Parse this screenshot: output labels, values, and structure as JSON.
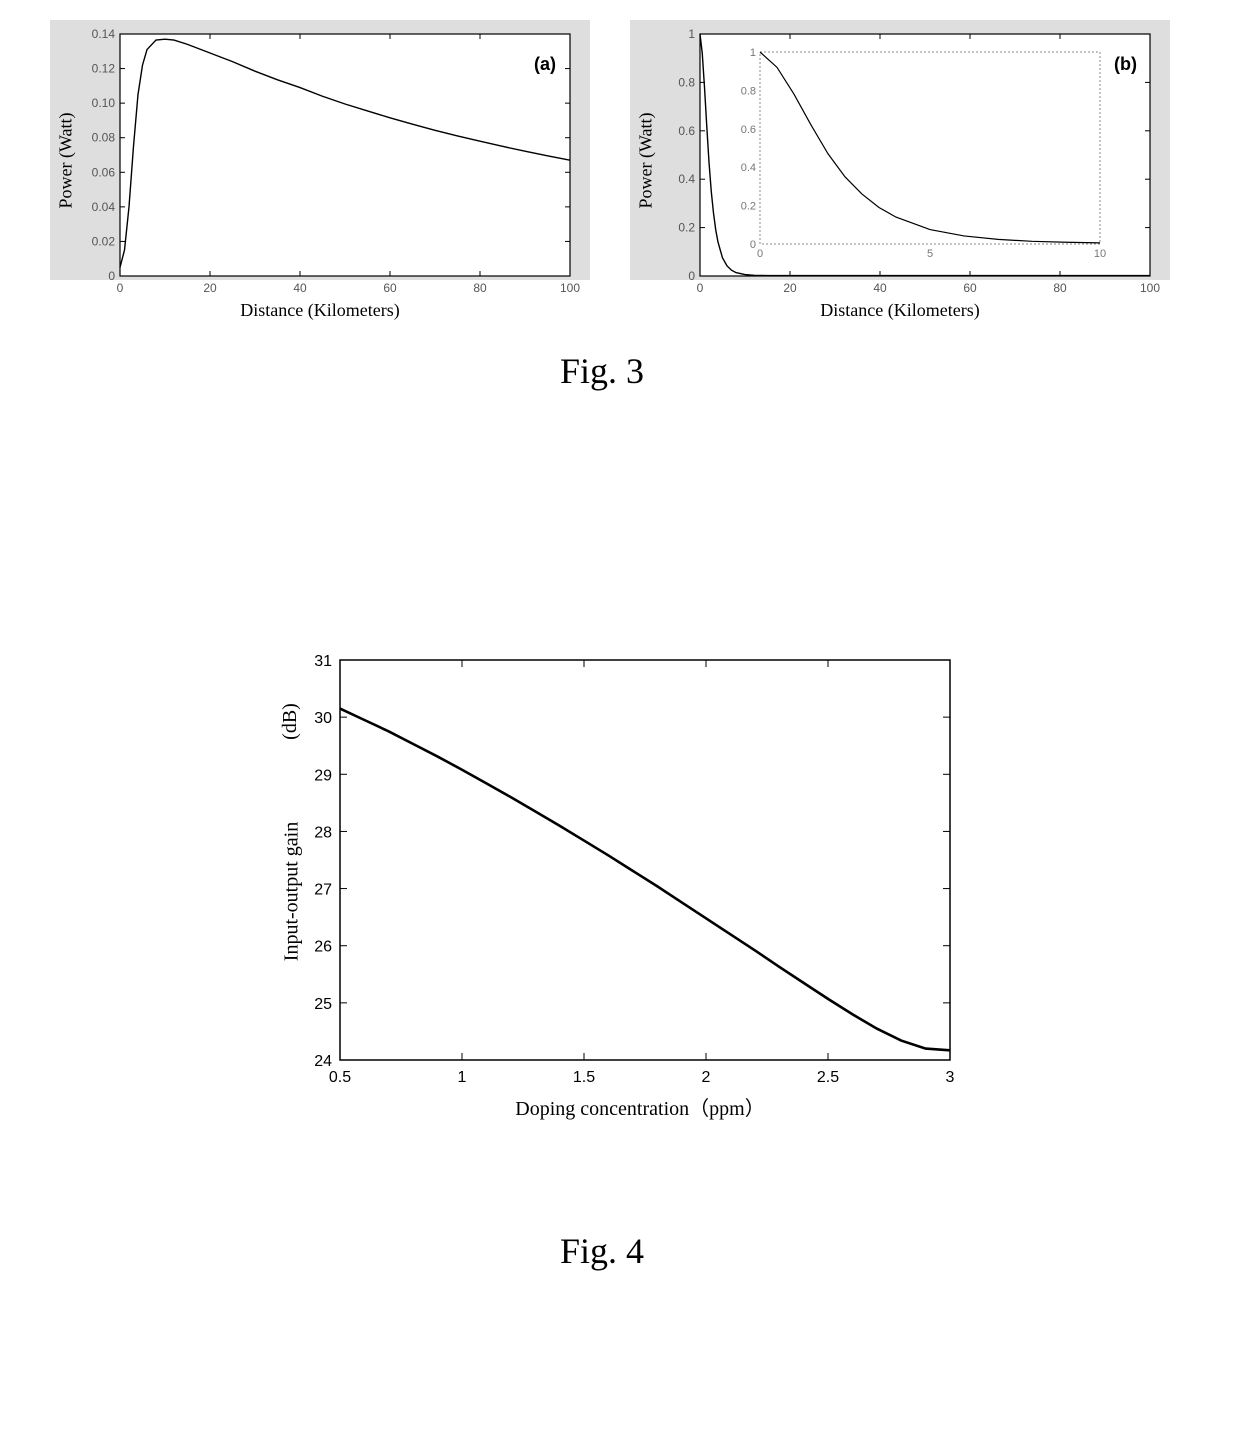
{
  "fig3": {
    "caption": "Fig. 3",
    "chart_a": {
      "type": "line",
      "panel_label": "(a)",
      "xlabel": "Distance (Kilometers)",
      "ylabel": "Power (Watt)",
      "xlim": [
        0,
        100
      ],
      "ylim": [
        0,
        0.14
      ],
      "xticks": [
        0,
        20,
        40,
        60,
        80,
        100
      ],
      "yticks": [
        0,
        0.02,
        0.04,
        0.06,
        0.08,
        0.1,
        0.12,
        0.14
      ],
      "ytick_labels": [
        "0",
        "0.02",
        "0.04",
        "0.06",
        "0.08",
        "0.10",
        "0.12",
        "0.14"
      ],
      "line_color": "#000000",
      "line_width": 1.4,
      "background_color": "#dedede",
      "plot_bg_color": "#ffffff",
      "tick_fontsize": 12,
      "label_fontsize": 18,
      "grid": false,
      "data": [
        [
          0,
          0.005
        ],
        [
          1,
          0.015
        ],
        [
          2,
          0.04
        ],
        [
          3,
          0.075
        ],
        [
          4,
          0.105
        ],
        [
          5,
          0.122
        ],
        [
          6,
          0.131
        ],
        [
          8,
          0.1365
        ],
        [
          10,
          0.137
        ],
        [
          12,
          0.1365
        ],
        [
          15,
          0.134
        ],
        [
          20,
          0.129
        ],
        [
          25,
          0.124
        ],
        [
          30,
          0.1185
        ],
        [
          35,
          0.1135
        ],
        [
          40,
          0.109
        ],
        [
          45,
          0.104
        ],
        [
          50,
          0.0995
        ],
        [
          55,
          0.0955
        ],
        [
          60,
          0.0915
        ],
        [
          65,
          0.0878
        ],
        [
          70,
          0.0843
        ],
        [
          75,
          0.081
        ],
        [
          80,
          0.078
        ],
        [
          85,
          0.075
        ],
        [
          90,
          0.0722
        ],
        [
          95,
          0.0695
        ],
        [
          100,
          0.067
        ]
      ]
    },
    "chart_b": {
      "type": "line",
      "panel_label": "(b)",
      "xlabel": "Distance (Kilometers)",
      "ylabel": "Power (Watt)",
      "xlim": [
        0,
        100
      ],
      "ylim": [
        0,
        1.0
      ],
      "xticks": [
        0,
        20,
        40,
        60,
        80,
        100
      ],
      "yticks": [
        0,
        0.2,
        0.4,
        0.6,
        0.8,
        1.0
      ],
      "ytick_labels": [
        "0",
        "0.2",
        "0.4",
        "0.6",
        "0.8",
        "1"
      ],
      "line_color": "#000000",
      "line_width": 1.4,
      "background_color": "#dedede",
      "plot_bg_color": "#ffffff",
      "tick_fontsize": 12,
      "label_fontsize": 18,
      "grid": false,
      "data": [
        [
          0,
          1.0
        ],
        [
          0.5,
          0.92
        ],
        [
          1,
          0.78
        ],
        [
          1.5,
          0.62
        ],
        [
          2,
          0.47
        ],
        [
          2.5,
          0.35
        ],
        [
          3,
          0.26
        ],
        [
          3.5,
          0.19
        ],
        [
          4,
          0.14
        ],
        [
          5,
          0.075
        ],
        [
          6,
          0.042
        ],
        [
          7,
          0.024
        ],
        [
          8,
          0.014
        ],
        [
          10,
          0.006
        ],
        [
          12,
          0.003
        ],
        [
          15,
          0.002
        ],
        [
          20,
          0.002
        ],
        [
          40,
          0.002
        ],
        [
          60,
          0.002
        ],
        [
          80,
          0.002
        ],
        [
          100,
          0.002
        ]
      ],
      "inset": {
        "xlim": [
          0,
          10
        ],
        "ylim": [
          0,
          1.0
        ],
        "xticks": [
          0,
          5,
          10
        ],
        "yticks": [
          0,
          0.2,
          0.4,
          0.6,
          0.8,
          1.0
        ],
        "ytick_labels": [
          "0",
          "0.2",
          "0.4",
          "0.6",
          "0.8",
          "1"
        ],
        "line_color": "#000000",
        "line_width": 1.2,
        "border_style": "dotted",
        "data": [
          [
            0,
            1.0
          ],
          [
            0.5,
            0.92
          ],
          [
            1,
            0.78
          ],
          [
            1.5,
            0.62
          ],
          [
            2,
            0.47
          ],
          [
            2.5,
            0.35
          ],
          [
            3,
            0.26
          ],
          [
            3.5,
            0.19
          ],
          [
            4,
            0.14
          ],
          [
            5,
            0.075
          ],
          [
            6,
            0.042
          ],
          [
            7,
            0.024
          ],
          [
            8,
            0.014
          ],
          [
            9,
            0.009
          ],
          [
            10,
            0.006
          ]
        ]
      }
    }
  },
  "fig4": {
    "caption": "Fig. 4",
    "chart": {
      "type": "line",
      "xlabel": "Doping concentration（ppm）",
      "ylabel": "Input-output gain",
      "ylabel_unit": "(dB)",
      "xlim": [
        0.5,
        3.0
      ],
      "ylim": [
        24,
        31
      ],
      "xticks": [
        0.5,
        1,
        1.5,
        2,
        2.5,
        3
      ],
      "yticks": [
        24,
        25,
        26,
        27,
        28,
        29,
        30,
        31
      ],
      "line_color": "#000000",
      "line_width": 2.6,
      "background_color": "#ffffff",
      "plot_bg_color": "#ffffff",
      "tick_fontsize": 16,
      "label_fontsize": 20,
      "grid": false,
      "data": [
        [
          0.5,
          30.15
        ],
        [
          0.6,
          29.95
        ],
        [
          0.7,
          29.75
        ],
        [
          0.8,
          29.53
        ],
        [
          0.9,
          29.31
        ],
        [
          1.0,
          29.08
        ],
        [
          1.1,
          28.84
        ],
        [
          1.2,
          28.6
        ],
        [
          1.3,
          28.35
        ],
        [
          1.4,
          28.1
        ],
        [
          1.5,
          27.84
        ],
        [
          1.6,
          27.58
        ],
        [
          1.7,
          27.31
        ],
        [
          1.8,
          27.04
        ],
        [
          1.9,
          26.76
        ],
        [
          2.0,
          26.48
        ],
        [
          2.1,
          26.2
        ],
        [
          2.2,
          25.92
        ],
        [
          2.3,
          25.63
        ],
        [
          2.4,
          25.35
        ],
        [
          2.5,
          25.07
        ],
        [
          2.6,
          24.8
        ],
        [
          2.7,
          24.55
        ],
        [
          2.8,
          24.34
        ],
        [
          2.9,
          24.2
        ],
        [
          3.0,
          24.17
        ]
      ]
    }
  }
}
